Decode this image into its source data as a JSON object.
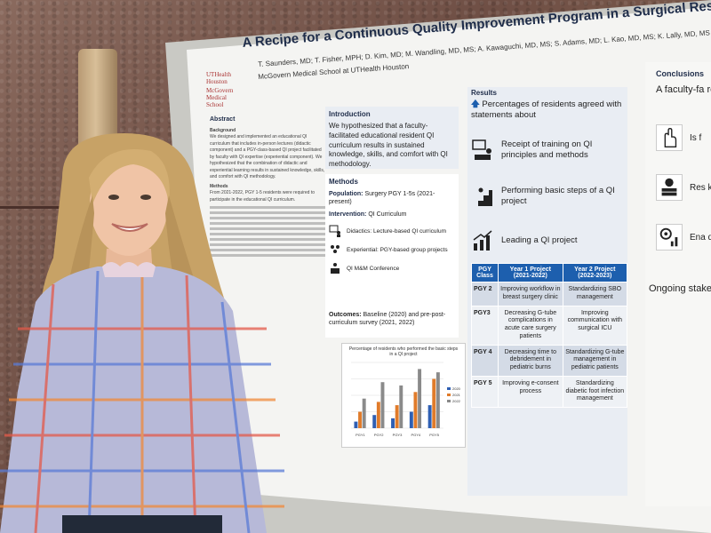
{
  "poster": {
    "title": "A Recipe for a Continuous Quality Improvement Program in a Surgical Residen",
    "authors": "T. Saunders, MD; T. Fisher, MPH; D. Kim, MD; M. Wandling, MD, MS; A. Kawaguchi, MD, MS; S. Adams, MD; L. Kao, MD, MS; K. Lally, MD, MS",
    "affiliation": "McGovern Medical School at UTHealth Houston",
    "logo_lines": [
      "UTHealth",
      "Houston",
      "McGovern",
      "Medical School"
    ],
    "abstract": {
      "heading": "Abstract",
      "sub1": "Background",
      "text1": "We designed and implemented an educational QI curriculum that includes in-person lectures (didactic component) and a PGY-class-based QI project facilitated by faculty with QI expertise (experiential component). We hypothesized that the combination of didactic and experiential learning results in sustained knowledge, skills, and comfort with QI methodology.",
      "sub2": "Methods",
      "text2": "From 2021-2022, PGY 1-5 residents were required to participate in the educational QI curriculum."
    },
    "introduction": {
      "heading": "Introduction",
      "text": "We hypothesized that a faculty-facilitated educational resident QI curriculum results in sustained knowledge, skills, and comfort with QI methodology."
    },
    "methods": {
      "heading": "Methods",
      "population_label": "Population:",
      "population_value": "Surgery PGY 1-5s (2021-present)",
      "intervention_label": "Intervention:",
      "intervention_value": "QI Curriculum",
      "items": [
        "Didactics: Lecture-based QI curriculum",
        "Experiential: PGY-based group projects",
        "QI M&M Conference"
      ],
      "outcomes_label": "Outcomes:",
      "outcomes_value": "Baseline (2020) and pre-post-curriculum survey (2021, 2022)"
    },
    "results": {
      "heading": "Results",
      "lead": "Percentages of residents agreed with statements about",
      "items": [
        "Receipt of training on QI principles and methods",
        "Performing basic steps of a QI project",
        "Leading a QI project"
      ],
      "table": {
        "headers": [
          "PGY Class",
          "Year 1 Project (2021-2022)",
          "Year 2 Project (2022-2023)"
        ],
        "rows": [
          [
            "PGY 2",
            "Improving workflow in breast surgery clinic",
            "Standardizing SBO management"
          ],
          [
            "PGY3",
            "Decreasing G-tube complications in acute care surgery patients",
            "Improving communication with surgical ICU"
          ],
          [
            "PGY 4",
            "Decreasing time to debridement in pediatric burns",
            "Standardizing G-tube management in pediatric patients"
          ],
          [
            "PGY 5",
            "Improving e-consent process",
            "Standardizing diabetic foot infection management"
          ]
        ]
      }
    },
    "conclusions": {
      "heading": "Conclusions",
      "lead": "A faculty-fa resident QI",
      "items": [
        "Is f",
        "Res kno",
        "Ena des"
      ],
      "footer": "Ongoing stake collaboration, and faculty ex components t sustainable pa education."
    }
  },
  "chart_data": {
    "type": "bar",
    "title": "Percentage of residents who performed the basic steps in a QI project",
    "categories": [
      "PGY1",
      "PGY2",
      "PGY3",
      "PGY4",
      "PGY5"
    ],
    "series": [
      {
        "name": "2020",
        "values": [
          10,
          20,
          15,
          25,
          35
        ]
      },
      {
        "name": "2021",
        "values": [
          25,
          40,
          35,
          55,
          75
        ]
      },
      {
        "name": "2022",
        "values": [
          45,
          70,
          65,
          90,
          85
        ]
      }
    ],
    "ylim": [
      0,
      100
    ],
    "legend": "right",
    "colors": [
      "#2f5fb3",
      "#e07b2a",
      "#8a8a8a"
    ]
  }
}
